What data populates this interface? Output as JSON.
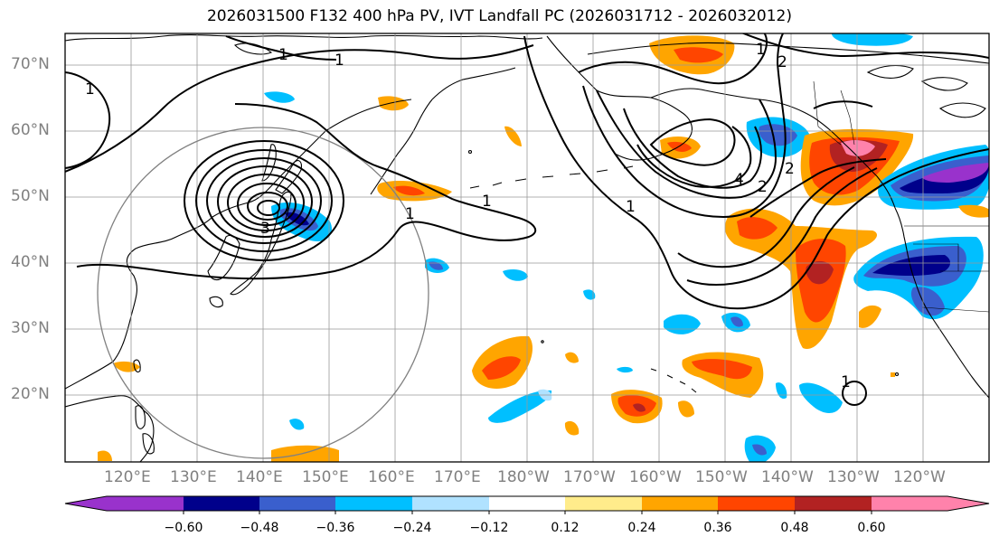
{
  "title": "2026031500 F132 400 hPa PV, IVT Landfall PC (2026031712 - 2026032012)",
  "lat_labels": [
    "70°N",
    "60°N",
    "50°N",
    "40°N",
    "30°N",
    "20°N"
  ],
  "lon_labels": [
    "120°E",
    "130°E",
    "140°E",
    "150°E",
    "160°E",
    "170°E",
    "180°W",
    "170°W",
    "160°W",
    "150°W",
    "140°W",
    "130°W",
    "120°W"
  ],
  "colorbar": {
    "colors": [
      "#9932CC",
      "#00008B",
      "#3A5FCD",
      "#00BFFF",
      "#B0E2FF",
      "#FFFFFF",
      "#FFEC8B",
      "#FFA500",
      "#FF4500",
      "#B22222",
      "#FF82AB"
    ],
    "tick_labels": [
      "−0.60",
      "−0.48",
      "−0.36",
      "−0.24",
      "−0.12",
      "0.12",
      "0.24",
      "0.36",
      "0.48",
      "0.60"
    ]
  },
  "contour_labels": [
    "1",
    "1",
    "1",
    "1",
    "1",
    "1",
    "1",
    "2",
    "2",
    "2",
    "3",
    "4",
    "1"
  ]
}
